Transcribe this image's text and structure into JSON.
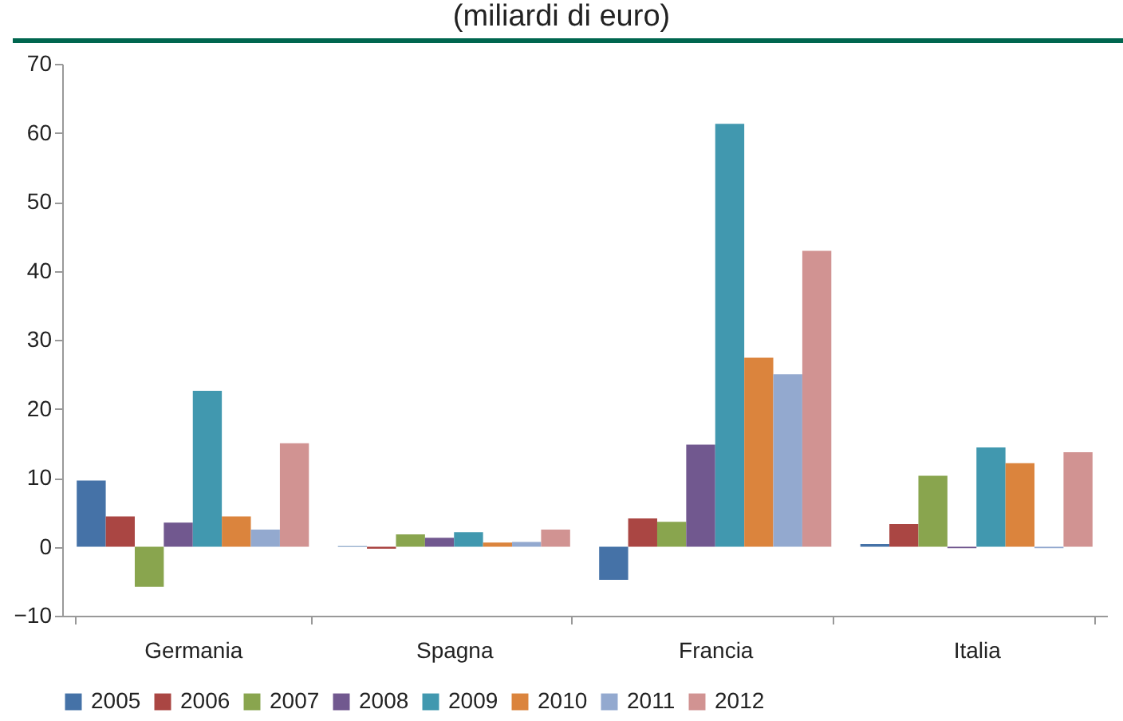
{
  "chart_data": {
    "type": "bar",
    "title": "(miliardi di euro)",
    "categories": [
      "Germania",
      "Spagna",
      "Francia",
      "Italia"
    ],
    "series": [
      {
        "name": "2005",
        "color": "#4572a7",
        "values": [
          9.6,
          0.1,
          -4.8,
          0.4
        ]
      },
      {
        "name": "2006",
        "color": "#aa4643",
        "values": [
          4.4,
          -0.3,
          4.1,
          3.3
        ]
      },
      {
        "name": "2007",
        "color": "#89a54e",
        "values": [
          -5.8,
          1.8,
          3.6,
          10.3
        ]
      },
      {
        "name": "2008",
        "color": "#71588f",
        "values": [
          3.5,
          1.3,
          14.8,
          -0.2
        ]
      },
      {
        "name": "2009",
        "color": "#4198af",
        "values": [
          22.6,
          2.1,
          61.3,
          14.4
        ]
      },
      {
        "name": "2010",
        "color": "#db843d",
        "values": [
          4.4,
          0.6,
          27.4,
          12.1
        ]
      },
      {
        "name": "2011",
        "color": "#93a9cf",
        "values": [
          2.5,
          0.7,
          25.0,
          -0.2
        ]
      },
      {
        "name": "2012",
        "color": "#d19392",
        "values": [
          15.0,
          2.5,
          42.9,
          13.7
        ]
      }
    ],
    "ylim": [
      -10,
      70
    ],
    "yticks": [
      -10,
      0,
      10,
      20,
      30,
      40,
      50,
      60,
      70
    ],
    "grid": false,
    "legend": "bottom"
  }
}
